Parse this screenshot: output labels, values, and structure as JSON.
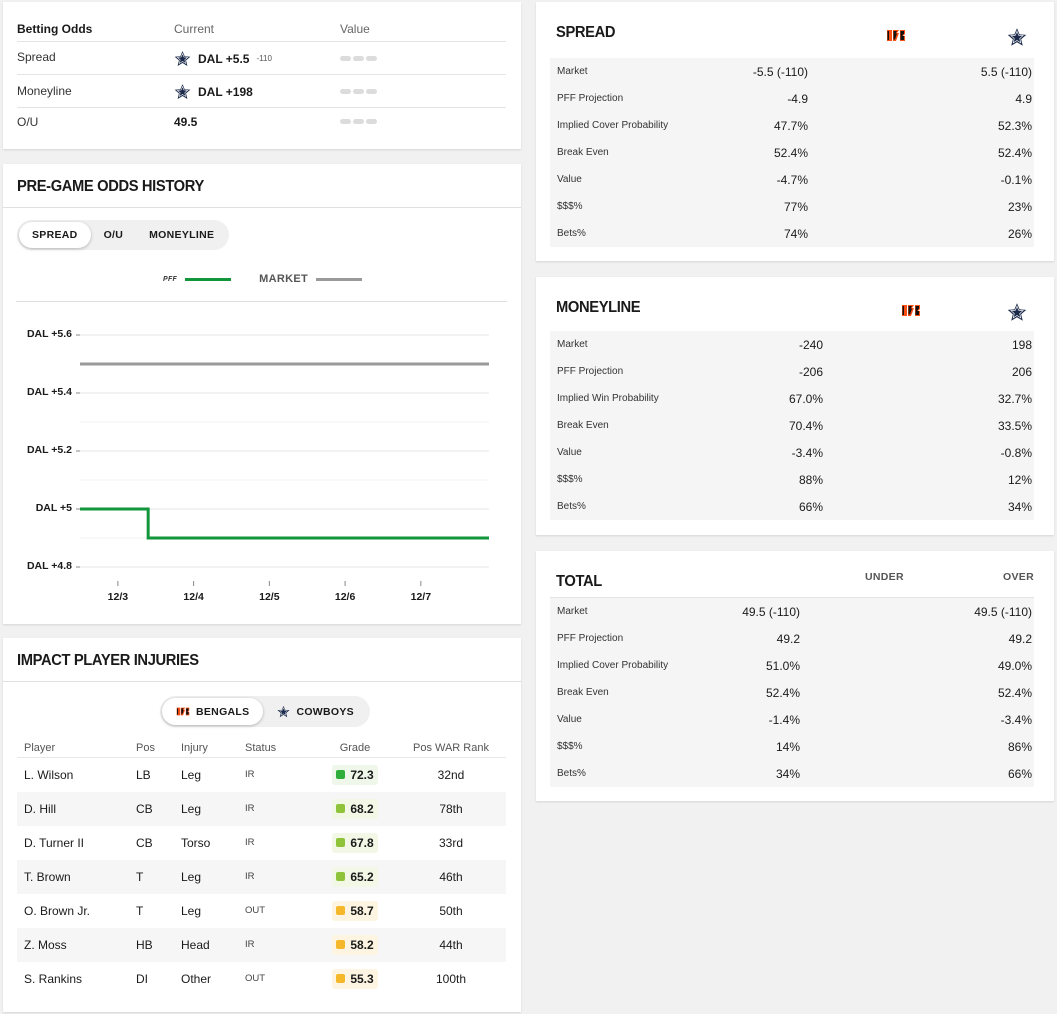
{
  "odds": {
    "header": {
      "label": "Betting Odds",
      "current": "Current",
      "value": "Value"
    },
    "rows": [
      {
        "label": "Spread",
        "team": "DAL",
        "current": "DAL +5.5",
        "sup": "-110"
      },
      {
        "label": "Moneyline",
        "team": "DAL",
        "current": "DAL +198",
        "sup": ""
      },
      {
        "label": "O/U",
        "team": "",
        "current": "49.5",
        "sup": ""
      }
    ]
  },
  "history": {
    "title": "PRE-GAME ODDS HISTORY",
    "tabs": [
      "SPREAD",
      "O/U",
      "MONEYLINE"
    ],
    "active_tab": "SPREAD",
    "legend": {
      "pff": "PFF",
      "market": "MARKET"
    },
    "colors": {
      "pff": "#12963c",
      "market": "#9a9a9a"
    }
  },
  "chart_data": {
    "type": "line",
    "title": "PRE-GAME ODDS HISTORY",
    "xlabel": "",
    "ylabel": "",
    "ylim": [
      4.8,
      5.6
    ],
    "yticks": [
      5.6,
      5.4,
      5.2,
      5.0,
      4.8
    ],
    "ytick_labels": [
      "DAL +5.6",
      "DAL +5.4",
      "DAL +5.2",
      "DAL +5",
      "DAL +4.8"
    ],
    "xlim": [
      0,
      5.4
    ],
    "xticks": [
      0.5,
      1.5,
      2.5,
      3.5,
      4.5
    ],
    "xtick_labels": [
      "12/3",
      "12/4",
      "12/5",
      "12/6",
      "12/7"
    ],
    "series": [
      {
        "name": "MARKET",
        "color": "#9a9a9a",
        "points": [
          [
            0,
            5.5
          ],
          [
            5.4,
            5.5
          ]
        ]
      },
      {
        "name": "PFF",
        "color": "#12963c",
        "points": [
          [
            0,
            5.0
          ],
          [
            0.9,
            5.0
          ],
          [
            0.9,
            4.9
          ],
          [
            5.4,
            4.9
          ]
        ]
      }
    ]
  },
  "injuries": {
    "title": "IMPACT PLAYER INJURIES",
    "teams": [
      "BENGALS",
      "COWBOYS"
    ],
    "active_team": "BENGALS",
    "columns": [
      "Player",
      "Pos",
      "Injury",
      "Status",
      "Grade",
      "Pos WAR Rank"
    ],
    "rows": [
      {
        "player": "L. Wilson",
        "pos": "LB",
        "injury": "Leg",
        "status": "IR",
        "grade": "72.3",
        "rank": "32nd",
        "color": "#2fae3c",
        "bg": "#eef7ea"
      },
      {
        "player": "D. Hill",
        "pos": "CB",
        "injury": "Leg",
        "status": "IR",
        "grade": "68.2",
        "rank": "78th",
        "color": "#8fc43a",
        "bg": "#f2f7e6"
      },
      {
        "player": "D. Turner II",
        "pos": "CB",
        "injury": "Torso",
        "status": "IR",
        "grade": "67.8",
        "rank": "33rd",
        "color": "#8fc43a",
        "bg": "#f2f7e6"
      },
      {
        "player": "T. Brown",
        "pos": "T",
        "injury": "Leg",
        "status": "IR",
        "grade": "65.2",
        "rank": "46th",
        "color": "#8fc43a",
        "bg": "#f2f7e6"
      },
      {
        "player": "O. Brown Jr.",
        "pos": "T",
        "injury": "Leg",
        "status": "OUT",
        "grade": "58.7",
        "rank": "50th",
        "color": "#f4b82a",
        "bg": "#fdf5e2"
      },
      {
        "player": "Z. Moss",
        "pos": "HB",
        "injury": "Head",
        "status": "IR",
        "grade": "58.2",
        "rank": "44th",
        "color": "#f4b82a",
        "bg": "#fdf5e2"
      },
      {
        "player": "S. Rankins",
        "pos": "DI",
        "injury": "Other",
        "status": "OUT",
        "grade": "55.3",
        "rank": "100th",
        "color": "#f4b82a",
        "bg": "#fdf5e2"
      }
    ]
  },
  "spread": {
    "title": "SPREAD",
    "rows": [
      {
        "k": "Market",
        "a": "-5.5 (-110)",
        "b": "5.5 (-110)"
      },
      {
        "k": "PFF Projection",
        "a": "-4.9",
        "b": "4.9"
      },
      {
        "k": "Implied Cover Probability",
        "a": "47.7%",
        "b": "52.3%"
      },
      {
        "k": "Break Even",
        "a": "52.4%",
        "b": "52.4%"
      },
      {
        "k": "Value",
        "a": "-4.7%",
        "b": "-0.1%"
      },
      {
        "k": "$$$%",
        "a": "77%",
        "b": "23%"
      },
      {
        "k": "Bets%",
        "a": "74%",
        "b": "26%"
      }
    ]
  },
  "moneyline": {
    "title": "MONEYLINE",
    "rows": [
      {
        "k": "Market",
        "a": "-240",
        "b": "198"
      },
      {
        "k": "PFF Projection",
        "a": "-206",
        "b": "206"
      },
      {
        "k": "Implied Win Probability",
        "a": "67.0%",
        "b": "32.7%"
      },
      {
        "k": "Break Even",
        "a": "70.4%",
        "b": "33.5%"
      },
      {
        "k": "Value",
        "a": "-3.4%",
        "b": "-0.8%"
      },
      {
        "k": "$$$%",
        "a": "88%",
        "b": "12%"
      },
      {
        "k": "Bets%",
        "a": "66%",
        "b": "34%"
      }
    ]
  },
  "total": {
    "title": "TOTAL",
    "col_a": "UNDER",
    "col_b": "OVER",
    "rows": [
      {
        "k": "Market",
        "a": "49.5 (-110)",
        "b": "49.5 (-110)"
      },
      {
        "k": "PFF Projection",
        "a": "49.2",
        "b": "49.2"
      },
      {
        "k": "Implied Cover Probability",
        "a": "51.0%",
        "b": "49.0%"
      },
      {
        "k": "Break Even",
        "a": "52.4%",
        "b": "52.4%"
      },
      {
        "k": "Value",
        "a": "-1.4%",
        "b": "-3.4%"
      },
      {
        "k": "$$$%",
        "a": "14%",
        "b": "86%"
      },
      {
        "k": "Bets%",
        "a": "34%",
        "b": "66%"
      }
    ]
  }
}
